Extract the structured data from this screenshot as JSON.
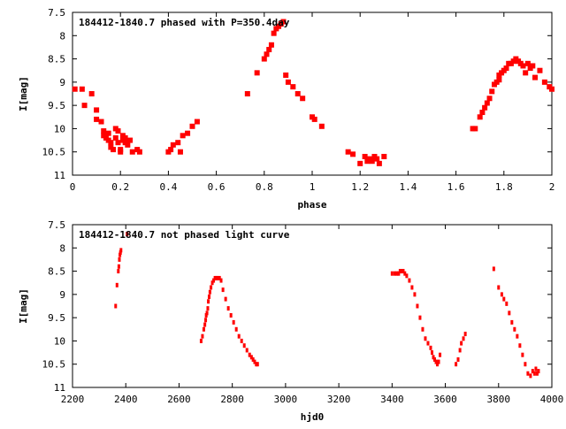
{
  "chart_data": [
    {
      "type": "scatter",
      "title": "184412-1840.7 phased with P=350.4day",
      "xlabel": "phase",
      "ylabel": "I[mag]",
      "xlim": [
        0,
        2
      ],
      "ylim": [
        7.5,
        11
      ],
      "y_inverted": true,
      "grid": false,
      "marker_color": "#ff0000",
      "x_ticks": [
        "0",
        "0.2",
        "0.4",
        "0.6",
        "0.8",
        "1",
        "1.2",
        "1.4",
        "1.6",
        "1.8",
        "2"
      ],
      "y_ticks": [
        "7.5",
        "8",
        "8.5",
        "9",
        "9.5",
        "10",
        "10.5",
        "11"
      ],
      "series": [
        {
          "x": [
            0.01,
            0.04,
            0.05,
            0.08,
            0.1,
            0.1,
            0.12,
            0.13,
            0.13,
            0.14,
            0.15,
            0.15,
            0.16,
            0.16,
            0.17,
            0.18,
            0.18,
            0.19,
            0.19,
            0.2,
            0.2,
            0.21,
            0.21,
            0.22,
            0.22,
            0.23,
            0.24,
            0.25,
            0.27,
            0.28,
            0.4,
            0.41,
            0.42,
            0.44,
            0.45,
            0.46,
            0.48,
            0.5,
            0.52,
            0.73,
            0.77,
            0.8,
            0.81,
            0.82,
            0.83,
            0.84,
            0.85,
            0.86,
            0.87,
            0.88,
            0.89,
            0.9,
            0.92,
            0.94,
            0.96,
            1.0,
            1.01,
            1.04,
            1.15,
            1.17,
            1.2,
            1.22,
            1.23,
            1.24,
            1.25,
            1.26,
            1.27,
            1.28,
            1.3,
            1.67,
            1.68,
            1.7,
            1.71,
            1.72,
            1.73,
            1.74,
            1.75,
            1.76,
            1.77,
            1.78,
            1.78,
            1.79,
            1.8,
            1.81,
            1.82,
            1.83,
            1.84,
            1.85,
            1.86,
            1.87,
            1.88,
            1.89,
            1.9,
            1.91,
            1.92,
            1.93,
            1.95,
            1.97,
            1.99,
            2.0
          ],
          "y": [
            9.15,
            9.15,
            9.5,
            9.25,
            9.6,
            9.8,
            9.85,
            10.05,
            10.15,
            10.2,
            10.25,
            10.1,
            10.3,
            10.4,
            10.45,
            10.0,
            10.2,
            10.05,
            10.3,
            10.5,
            10.45,
            10.15,
            10.25,
            10.2,
            10.3,
            10.35,
            10.25,
            10.5,
            10.45,
            10.5,
            10.5,
            10.45,
            10.35,
            10.3,
            10.5,
            10.15,
            10.1,
            9.95,
            9.85,
            9.25,
            8.8,
            8.5,
            8.4,
            8.3,
            8.2,
            7.95,
            7.85,
            7.8,
            7.75,
            7.7,
            8.85,
            9.0,
            9.1,
            9.25,
            9.35,
            9.75,
            9.8,
            9.95,
            10.5,
            10.55,
            10.75,
            10.6,
            10.7,
            10.65,
            10.7,
            10.6,
            10.65,
            10.75,
            10.6,
            10.0,
            10.0,
            9.75,
            9.65,
            9.55,
            9.45,
            9.35,
            9.2,
            9.05,
            9.0,
            8.95,
            8.85,
            8.8,
            8.75,
            8.7,
            8.6,
            8.6,
            8.55,
            8.5,
            8.55,
            8.6,
            8.65,
            8.8,
            8.6,
            8.7,
            8.65,
            8.9,
            8.75,
            9.0,
            9.1,
            9.15
          ]
        }
      ]
    },
    {
      "type": "scatter",
      "title": "184412-1840.7 not phased light curve",
      "xlabel": "hjd0",
      "ylabel": "I[mag]",
      "xlim": [
        2200,
        4000
      ],
      "ylim": [
        7.5,
        11
      ],
      "y_inverted": true,
      "grid": false,
      "marker_color": "#ff0000",
      "x_ticks": [
        "2200",
        "2400",
        "2600",
        "2800",
        "3000",
        "3200",
        "3400",
        "3600",
        "3800",
        "4000"
      ],
      "y_ticks": [
        "7.5",
        "8",
        "8.5",
        "9",
        "9.5",
        "10",
        "10.5",
        "11"
      ],
      "series": [
        {
          "x": [
            2362,
            2367,
            2372,
            2374,
            2376,
            2378,
            2380,
            2382,
            2405,
            2683,
            2688,
            2693,
            2697,
            2700,
            2702,
            2705,
            2708,
            2710,
            2713,
            2716,
            2720,
            2725,
            2730,
            2735,
            2740,
            2745,
            2752,
            2758,
            2765,
            2775,
            2785,
            2795,
            2805,
            2815,
            2825,
            2835,
            2845,
            2855,
            2865,
            2872,
            2878,
            2884,
            2890,
            2895,
            3400,
            3410,
            3418,
            3425,
            3430,
            3436,
            3442,
            3448,
            3455,
            3465,
            3475,
            3485,
            3495,
            3505,
            3515,
            3525,
            3535,
            3545,
            3550,
            3555,
            3560,
            3565,
            3570,
            3575,
            3580,
            3640,
            3648,
            3655,
            3660,
            3668,
            3675,
            3782,
            3800,
            3812,
            3820,
            3830,
            3840,
            3850,
            3860,
            3870,
            3880,
            3890,
            3900,
            3910,
            3920,
            3928,
            3935,
            3940,
            3945,
            3950
          ],
          "y": [
            9.25,
            8.8,
            8.5,
            8.4,
            8.25,
            8.15,
            8.1,
            8.05,
            7.7,
            10.0,
            9.9,
            9.75,
            9.65,
            9.55,
            9.45,
            9.4,
            9.3,
            9.15,
            9.05,
            8.95,
            8.85,
            8.75,
            8.7,
            8.65,
            8.65,
            8.65,
            8.65,
            8.7,
            8.9,
            9.1,
            9.3,
            9.45,
            9.6,
            9.75,
            9.9,
            10.0,
            10.1,
            10.2,
            10.3,
            10.35,
            10.4,
            10.45,
            10.5,
            10.5,
            8.55,
            8.55,
            8.55,
            8.55,
            8.5,
            8.5,
            8.5,
            8.55,
            8.6,
            8.7,
            8.85,
            9.0,
            9.25,
            9.5,
            9.75,
            9.95,
            10.05,
            10.15,
            10.25,
            10.35,
            10.4,
            10.45,
            10.5,
            10.45,
            10.3,
            10.5,
            10.4,
            10.2,
            10.05,
            9.95,
            9.85,
            8.45,
            8.85,
            9.0,
            9.1,
            9.2,
            9.4,
            9.6,
            9.75,
            9.9,
            10.1,
            10.3,
            10.5,
            10.7,
            10.75,
            10.65,
            10.7,
            10.6,
            10.7,
            10.65
          ]
        }
      ]
    }
  ]
}
